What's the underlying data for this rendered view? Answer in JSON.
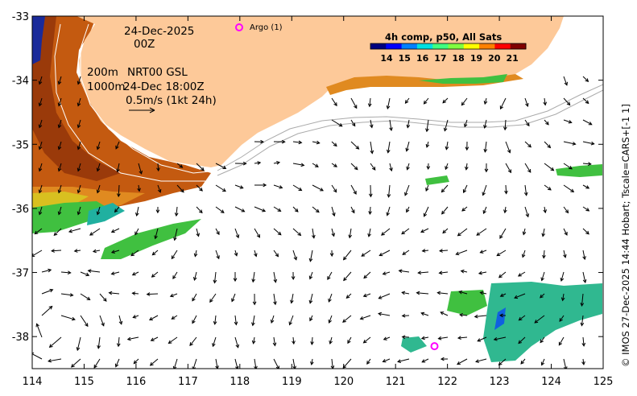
{
  "map": {
    "lon_ticks": [
      114,
      115,
      116,
      117,
      118,
      119,
      120,
      121,
      122,
      123,
      124,
      125
    ],
    "lat_ticks": [
      -33,
      -34,
      -35,
      -36,
      -37,
      -38
    ],
    "lon_range": [
      114,
      125
    ],
    "lat_range": [
      -38.5,
      -33
    ]
  },
  "annotations": {
    "date": "24-Dec-2025",
    "time": "00Z",
    "contour_200": "200m",
    "contour_1000": "1000m",
    "product": "NRT00 GSL",
    "product_time": "24-Dec 18:00Z",
    "vector_scale": "0.5m/s (1kt 24h)"
  },
  "argo": {
    "legend_label": "Argo (1)",
    "color": "#ff00ff",
    "floats": [
      {
        "lon": 121.75,
        "lat": -38.15
      }
    ]
  },
  "colorbar": {
    "title": "4h comp, p50, All Sats",
    "ticks": [
      "14",
      "15",
      "16",
      "17",
      "18",
      "19",
      "20",
      "21"
    ],
    "colors": [
      "#00007f",
      "#0000ff",
      "#0080ff",
      "#00e0e0",
      "#40ff80",
      "#80ff40",
      "#ffff00",
      "#ff8000",
      "#ff0000",
      "#800000"
    ]
  },
  "credit": "© IMOS 27-Dec-2025 14:44 Hobart; Tscale=CARS+[-1 1]",
  "colors": {
    "land": "#fdc999",
    "frame": "#000000",
    "current_arrow": "#000000",
    "contour": "#ffffff"
  }
}
